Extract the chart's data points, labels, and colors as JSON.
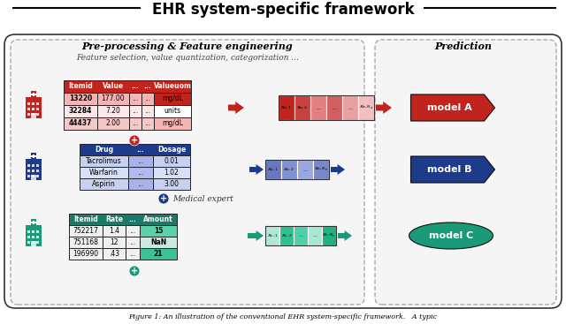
{
  "title": "EHR system-specific framework",
  "subtitle_preproc": "Pre-processing & Feature engineering",
  "subtitle_feat": "Feature selection, value quantization, categorization ...",
  "subtitle_pred": "Prediction",
  "bg_color": "#ffffff",
  "colors": {
    "red": "#c0241c",
    "blue": "#1e3a8a",
    "teal": "#1a9a78"
  },
  "table_a_headers": [
    "Itemid",
    "Value",
    "...",
    "...",
    "Valueuom"
  ],
  "table_a_rows": [
    [
      "13220",
      "177.00",
      "...",
      "...",
      "mg/dL"
    ],
    [
      "32284",
      "7.20",
      "...",
      "...",
      "units"
    ],
    [
      "44437",
      "2.00",
      "...",
      "...",
      "mg/dL"
    ]
  ],
  "table_b_headers": [
    "Drug",
    "...",
    "Dosage"
  ],
  "table_b_rows": [
    [
      "Tacrolimus",
      "...",
      "0.01"
    ],
    [
      "Warfarin",
      "...",
      "1.02"
    ],
    [
      "Aspirin",
      "...",
      "3.00"
    ]
  ],
  "table_c_headers": [
    "Itemid",
    "Rate",
    "...",
    "Amount"
  ],
  "table_c_rows": [
    [
      "752217",
      "1.4",
      "...",
      "15"
    ],
    [
      "751168",
      "12",
      "...",
      "NaN"
    ],
    [
      "196990",
      ".43",
      "...",
      "21"
    ]
  ],
  "model_labels": [
    "model A",
    "model B",
    "model C"
  ],
  "vec_a_labels": [
    "$x_{a,1}$",
    "$x_{a,2}$",
    "...",
    "...",
    "...",
    "$x_{a,N_a}$"
  ],
  "vec_b_labels": [
    "$x_{b,1}$",
    "$x_{b,2}$",
    "...",
    "$x_{b,N_b}$"
  ],
  "vec_c_labels": [
    "$x_{c,1}$",
    "$x_{c,2}$",
    "...",
    "...",
    "$x_{c,N_c}$"
  ],
  "caption": "Figure 1: An illustration of the conventional EHR system-specific framework.   A typic"
}
